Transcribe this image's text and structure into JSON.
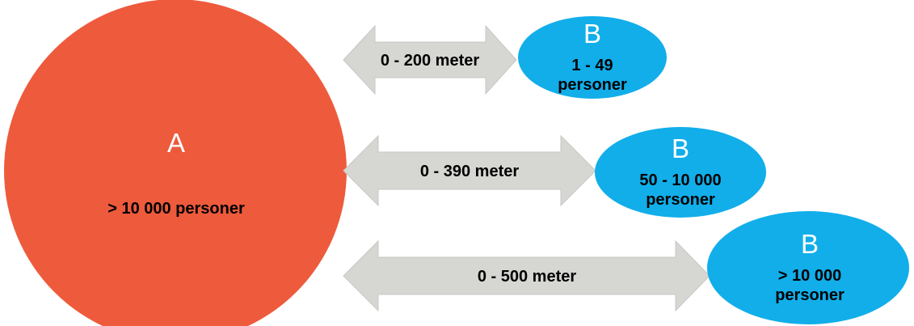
{
  "colors": {
    "circle_a": "#ee5a3c",
    "ellipse_b": "#11aeea",
    "arrow": "#d6d6d3",
    "arrow_stroke": "#c7c7c4"
  },
  "circle_a": {
    "letter": "A",
    "label": "> 10 000 personer"
  },
  "distances": [
    {
      "arrow_label": "0 - 200 meter",
      "b_letter": "B",
      "b_line1": "1 - 49",
      "b_line2": "personer"
    },
    {
      "arrow_label": "0 - 390 meter",
      "b_letter": "B",
      "b_line1": "50 - 10 000",
      "b_line2": "personer"
    },
    {
      "arrow_label": "0 - 500 meter",
      "b_letter": "B",
      "b_line1": "> 10 000",
      "b_line2": "personer"
    }
  ]
}
